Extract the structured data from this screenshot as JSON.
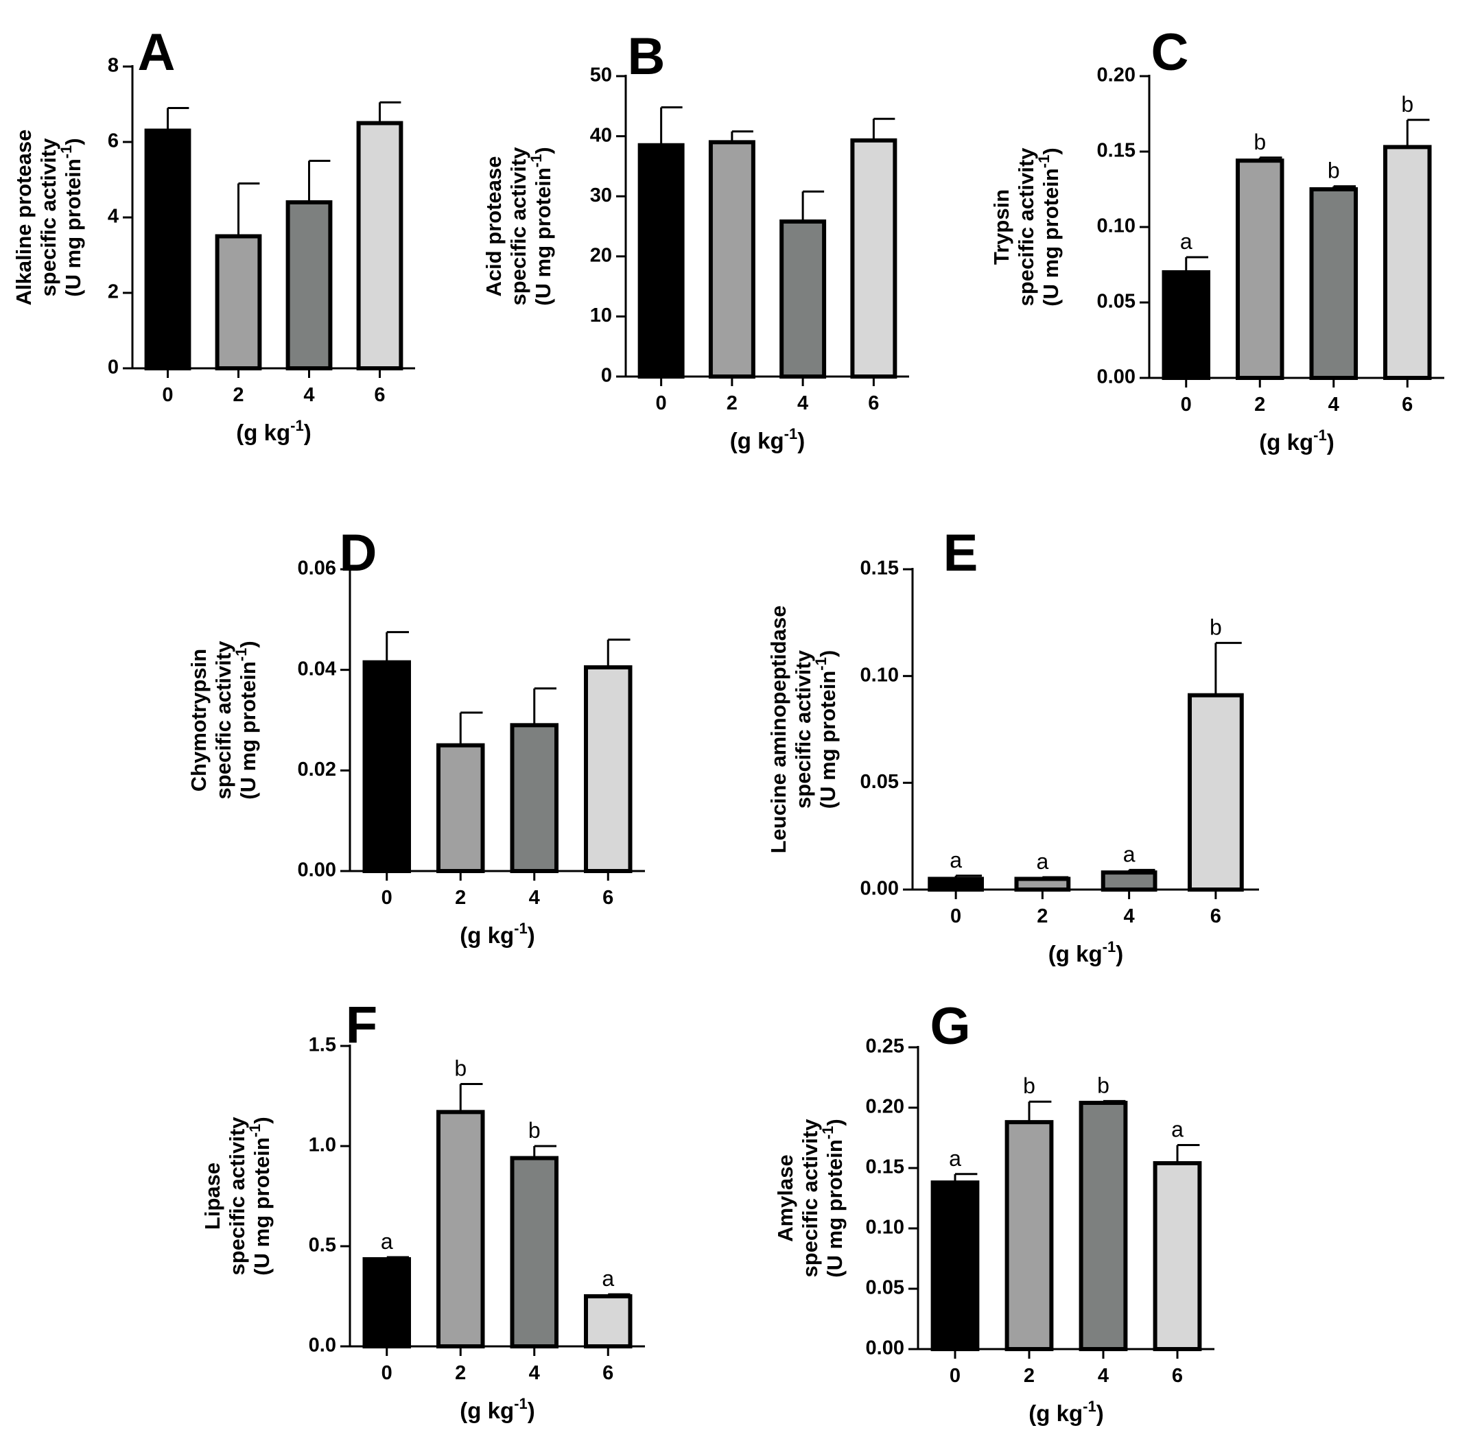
{
  "colors": {
    "bar_fills": [
      "#000000",
      "#a0a0a0",
      "#7d807f",
      "#d7d7d7"
    ],
    "stroke": "#000000"
  },
  "chart_data": [
    {
      "type": "bar",
      "panel": "A",
      "ylabel_lines": [
        "Alkaline protease",
        "specific activity"
      ],
      "unit": {
        "main": "(U mg protein",
        "sup": "-1",
        "close": ")"
      },
      "xlabel": {
        "main": "(g  kg",
        "sup": "-1",
        "close": ")"
      },
      "categories": [
        "0",
        "2",
        "4",
        "6"
      ],
      "values": [
        6.3,
        3.5,
        4.4,
        6.5
      ],
      "errors": [
        0.6,
        1.4,
        1.1,
        0.55
      ],
      "letters": [],
      "ylim": [
        0,
        8
      ],
      "yticks": [
        0,
        2,
        4,
        6,
        8
      ],
      "ytick_labels": [
        "0",
        "2",
        "4",
        "6",
        "8"
      ]
    },
    {
      "type": "bar",
      "panel": "B",
      "ylabel_lines": [
        "Acid protease",
        "specific activity"
      ],
      "unit": {
        "main": "(U mg protein",
        "sup": "-1",
        "close": ")"
      },
      "xlabel": {
        "main": "(g  kg",
        "sup": "-1",
        "close": ")"
      },
      "categories": [
        "0",
        "2",
        "4",
        "6"
      ],
      "values": [
        38.5,
        39,
        25.8,
        39.3
      ],
      "errors": [
        6.3,
        1.8,
        5.0,
        3.6
      ],
      "letters": [],
      "ylim": [
        0,
        50
      ],
      "yticks": [
        0,
        10,
        20,
        30,
        40,
        50
      ],
      "ytick_labels": [
        "0",
        "10",
        "20",
        "30",
        "40",
        "50"
      ]
    },
    {
      "type": "bar",
      "panel": "C",
      "ylabel_lines": [
        "Trypsin",
        "specific activity"
      ],
      "unit": {
        "main": "(U mg protein",
        "sup": "-1",
        "close": ")"
      },
      "xlabel": {
        "main": "(g  kg",
        "sup": "-1",
        "close": ")"
      },
      "categories": [
        "0",
        "2",
        "4",
        "6"
      ],
      "values": [
        0.07,
        0.144,
        0.125,
        0.153
      ],
      "errors": [
        0.01,
        0.002,
        0.002,
        0.018
      ],
      "letters": [
        "a",
        "b",
        "b",
        "b"
      ],
      "ylim": [
        0,
        0.2
      ],
      "yticks": [
        0,
        0.05,
        0.1,
        0.15,
        0.2
      ],
      "ytick_labels": [
        "0.00",
        "0.05",
        "0.10",
        "0.15",
        "0.20"
      ]
    },
    {
      "type": "bar",
      "panel": "D",
      "ylabel_lines": [
        "Chymotrypsin",
        "specific activity"
      ],
      "unit": {
        "main": "(U mg protein",
        "sup": "-1",
        "close": ")"
      },
      "xlabel": {
        "main": "(g  kg",
        "sup": "-1",
        "close": ")"
      },
      "categories": [
        "0",
        "2",
        "4",
        "6"
      ],
      "values": [
        0.0415,
        0.025,
        0.029,
        0.0405
      ],
      "errors": [
        0.006,
        0.0065,
        0.0073,
        0.0055
      ],
      "letters": [],
      "ylim": [
        0,
        0.06
      ],
      "yticks": [
        0,
        0.02,
        0.04,
        0.06
      ],
      "ytick_labels": [
        "0.00",
        "0.02",
        "0.04",
        "0.06"
      ]
    },
    {
      "type": "bar",
      "panel": "E",
      "ylabel_lines": [
        "Leucine aminopeptidase",
        "specific activity"
      ],
      "unit": {
        "main": "(U mg protein",
        "sup": "-1",
        "close": ")"
      },
      "xlabel": {
        "main": "(g  kg",
        "sup": "-1",
        "close": ")"
      },
      "categories": [
        "0",
        "2",
        "4",
        "6"
      ],
      "values": [
        0.005,
        0.005,
        0.008,
        0.091
      ],
      "errors": [
        0.0015,
        0.0008,
        0.0012,
        0.0245
      ],
      "letters": [
        "a",
        "a",
        "a",
        "b"
      ],
      "ylim": [
        0,
        0.15
      ],
      "yticks": [
        0,
        0.05,
        0.1,
        0.15
      ],
      "ytick_labels": [
        "0.00",
        "0.05",
        "0.10",
        "0.15"
      ]
    },
    {
      "type": "bar",
      "panel": "F",
      "ylabel_lines": [
        "Lipase",
        "specific activity"
      ],
      "unit": {
        "main": "(U mg protein",
        "sup": "-1",
        "close": ")"
      },
      "xlabel": {
        "main": "(g  kg",
        "sup": "-1",
        "close": ")"
      },
      "categories": [
        "0",
        "2",
        "4",
        "6"
      ],
      "values": [
        0.435,
        1.17,
        0.94,
        0.25
      ],
      "errors": [
        0.01,
        0.14,
        0.06,
        0.01
      ],
      "letters": [
        "a",
        "b",
        "b",
        "a"
      ],
      "ylim": [
        0,
        1.5
      ],
      "yticks": [
        0,
        0.5,
        1.0,
        1.5
      ],
      "ytick_labels": [
        "0.0",
        "0.5",
        "1.0",
        "1.5"
      ]
    },
    {
      "type": "bar",
      "panel": "G",
      "ylabel_lines": [
        "Amylase",
        "specific activity"
      ],
      "unit": {
        "main": "(U mg protein",
        "sup": "-1",
        "close": ")"
      },
      "xlabel": {
        "main": "(g  kg",
        "sup": "-1",
        "close": ")"
      },
      "categories": [
        "0",
        "2",
        "4",
        "6"
      ],
      "values": [
        0.138,
        0.188,
        0.204,
        0.154
      ],
      "errors": [
        0.007,
        0.017,
        0.0015,
        0.015
      ],
      "letters": [
        "a",
        "b",
        "b",
        "a"
      ],
      "ylim": [
        0,
        0.25
      ],
      "yticks": [
        0,
        0.05,
        0.1,
        0.15,
        0.2,
        0.25
      ],
      "ytick_labels": [
        "0.00",
        "0.05",
        "0.10",
        "0.15",
        "0.20",
        "0.25"
      ]
    }
  ]
}
